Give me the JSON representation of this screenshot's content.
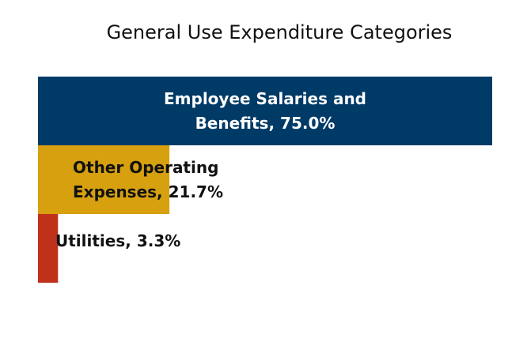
{
  "chart_data": {
    "type": "bar",
    "orientation": "horizontal",
    "title": "General Use Expenditure Categories",
    "xlabel": "",
    "ylabel": "",
    "categories": [
      "Employee Salaries and Benefits",
      "Other Operating Expenses",
      "Utilities"
    ],
    "values": [
      75.0,
      21.7,
      3.3
    ],
    "unit": "%",
    "xlim": [
      0,
      75
    ],
    "grid": false,
    "legend": "none",
    "data_labels": [
      [
        "Employee Salaries and",
        "Benefits, 75.0%"
      ],
      [
        "Other Operating",
        "Expenses, 21.7%"
      ],
      [
        "Utilities, 3.3%"
      ]
    ],
    "colors": [
      "#003a66",
      "#d6a00f",
      "#c0311b"
    ],
    "label_colors": [
      "#ffffff",
      "#111111",
      "#111111"
    ]
  }
}
